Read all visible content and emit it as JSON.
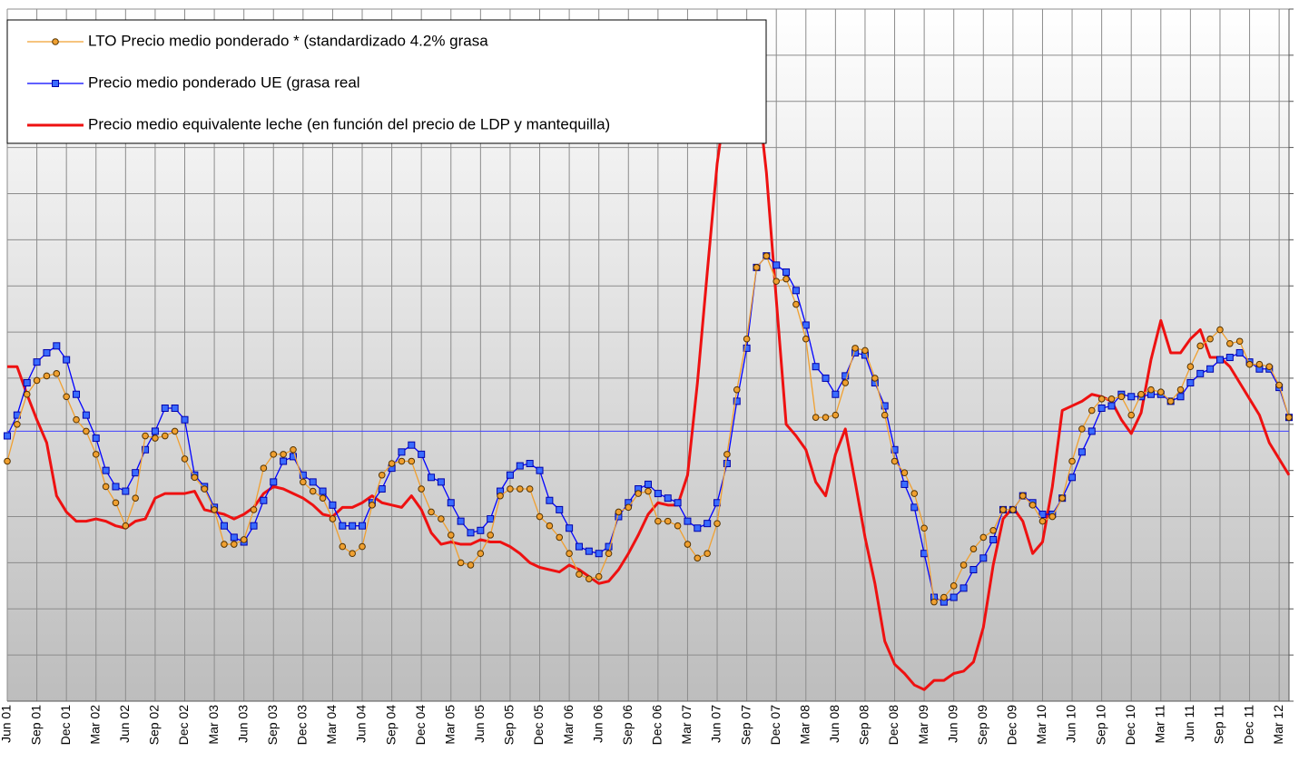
{
  "chart_data": {
    "type": "line",
    "categories": [
      "Jun 01",
      null,
      null,
      "Sep 01",
      null,
      null,
      "Dec 01",
      null,
      null,
      "Mar 02",
      null,
      null,
      "Jun 02",
      null,
      null,
      "Sep 02",
      null,
      null,
      "Dec 02",
      null,
      null,
      "Mar 03",
      null,
      null,
      "Jun 03",
      null,
      null,
      "Sep 03",
      null,
      null,
      "Dec 03",
      null,
      null,
      "Mar 04",
      null,
      null,
      "Jun 04",
      null,
      null,
      "Sep 04",
      null,
      null,
      "Dec 04",
      null,
      null,
      "Mar 05",
      null,
      null,
      "Jun 05",
      null,
      null,
      "Sep 05",
      null,
      null,
      "Dec 05",
      null,
      null,
      "Mar 06",
      null,
      null,
      "Jun 06",
      null,
      null,
      "Sep 06",
      null,
      null,
      "Dec 06",
      null,
      null,
      "Mar 07",
      null,
      null,
      "Jun 07",
      null,
      null,
      "Sep 07",
      null,
      null,
      "Dec 07",
      null,
      null,
      "Mar 08",
      null,
      null,
      "Jun 08",
      null,
      null,
      "Sep 08",
      null,
      null,
      "Dec 08",
      null,
      null,
      "Mar 09",
      null,
      null,
      "Jun 09",
      null,
      null,
      "Sep 09",
      null,
      null,
      "Dec 09",
      null,
      null,
      "Mar 10",
      null,
      null,
      "Jun 10",
      null,
      null,
      "Sep 10",
      null,
      null,
      "Dec 10",
      null,
      null,
      "Mar 11",
      null,
      null,
      "Jun 11",
      null,
      null,
      "Sep 11",
      null,
      null,
      "Dec 11",
      null,
      null,
      "Mar 12",
      null
    ],
    "series": [
      {
        "name": "LTO  Precio medio ponderado * (standardizado 4.2% grasa",
        "color": "#f0a030",
        "marker": "circle",
        "values": [
          30.4,
          32.0,
          33.3,
          33.9,
          34.1,
          34.2,
          33.2,
          32.2,
          31.7,
          30.7,
          29.3,
          28.6,
          27.6,
          28.8,
          31.5,
          31.4,
          31.5,
          31.7,
          30.5,
          29.7,
          29.2,
          28.3,
          26.8,
          26.8,
          27.0,
          28.3,
          30.1,
          30.7,
          30.7,
          30.9,
          29.5,
          29.1,
          28.8,
          27.9,
          26.7,
          26.4,
          26.7,
          28.5,
          29.8,
          30.3,
          30.4,
          30.4,
          29.2,
          28.2,
          27.9,
          27.2,
          26.0,
          25.9,
          26.4,
          27.2,
          28.9,
          29.2,
          29.2,
          29.2,
          28.0,
          27.6,
          27.1,
          26.4,
          25.5,
          25.3,
          25.4,
          26.4,
          28.2,
          28.4,
          29.0,
          29.1,
          27.8,
          27.8,
          27.6,
          26.8,
          26.2,
          26.4,
          27.7,
          30.7,
          33.5,
          35.7,
          38.8,
          39.3,
          38.2,
          38.3,
          37.2,
          35.7,
          32.3,
          32.3,
          32.4,
          33.8,
          35.3,
          35.2,
          34.0,
          32.4,
          30.4,
          29.9,
          29.0,
          27.5,
          24.3,
          24.5,
          25.0,
          25.9,
          26.6,
          27.1,
          27.4,
          28.3,
          28.3,
          28.9,
          28.5,
          27.8,
          28.0,
          28.8,
          30.4,
          31.8,
          32.6,
          33.1,
          33.1,
          33.2,
          32.4,
          33.3,
          33.5,
          33.4,
          33.0,
          33.5,
          34.5,
          35.4,
          35.7,
          36.1,
          35.5,
          35.6,
          34.6,
          34.6,
          34.5,
          33.7,
          32.3
        ]
      },
      {
        "name": "Precio medio ponderado UE  (grasa real",
        "color": "#0000ff",
        "marker": "square",
        "values": [
          31.5,
          32.4,
          33.8,
          34.7,
          35.1,
          35.4,
          34.8,
          33.3,
          32.4,
          31.4,
          30.0,
          29.3,
          29.1,
          29.9,
          30.9,
          31.7,
          32.7,
          32.7,
          32.2,
          29.8,
          29.3,
          28.4,
          27.6,
          27.1,
          26.9,
          27.6,
          28.7,
          29.5,
          30.4,
          30.6,
          29.8,
          29.5,
          29.1,
          28.5,
          27.6,
          27.6,
          27.6,
          28.6,
          29.2,
          30.1,
          30.8,
          31.1,
          30.7,
          29.7,
          29.5,
          28.6,
          27.8,
          27.3,
          27.4,
          27.9,
          29.1,
          29.8,
          30.2,
          30.3,
          30.0,
          28.7,
          28.3,
          27.5,
          26.7,
          26.5,
          26.4,
          26.7,
          28.0,
          28.6,
          29.2,
          29.4,
          29.0,
          28.8,
          28.6,
          27.8,
          27.5,
          27.7,
          28.6,
          30.3,
          33.0,
          35.3,
          38.8,
          39.3,
          38.9,
          38.6,
          37.8,
          36.3,
          34.5,
          34.0,
          33.3,
          34.1,
          35.1,
          35.0,
          33.8,
          32.8,
          30.9,
          29.4,
          28.4,
          26.4,
          24.5,
          24.3,
          24.5,
          24.9,
          25.7,
          26.2,
          27.0,
          28.3,
          28.3,
          28.9,
          28.6,
          28.1,
          28.1,
          28.8,
          29.7,
          30.8,
          31.7,
          32.7,
          32.8,
          33.3,
          33.2,
          33.2,
          33.3,
          33.3,
          33.0,
          33.2,
          33.8,
          34.2,
          34.4,
          34.8,
          34.9,
          35.1,
          34.7,
          34.4,
          34.4,
          33.6,
          32.3
        ]
      },
      {
        "name": "Precio medio equivalente leche  (en función del precio de LDP y mantequilla)",
        "color": "#ee1111",
        "marker": "none",
        "values": [
          34.5,
          34.5,
          33.3,
          32.2,
          31.2,
          28.9,
          28.2,
          27.8,
          27.8,
          27.9,
          27.8,
          27.6,
          27.5,
          27.8,
          27.9,
          28.8,
          29.0,
          29.0,
          29.0,
          29.1,
          28.3,
          28.2,
          28.1,
          27.9,
          28.1,
          28.4,
          29.0,
          29.3,
          29.2,
          29.0,
          28.8,
          28.5,
          28.1,
          28.0,
          28.4,
          28.4,
          28.6,
          28.9,
          28.6,
          28.5,
          28.4,
          28.9,
          28.3,
          27.3,
          26.8,
          26.9,
          26.8,
          26.8,
          27.0,
          26.9,
          26.9,
          26.7,
          26.4,
          26.0,
          25.8,
          25.7,
          25.6,
          25.9,
          25.7,
          25.4,
          25.1,
          25.2,
          25.7,
          26.4,
          27.2,
          28.1,
          28.6,
          28.5,
          28.5,
          29.8,
          33.8,
          38.6,
          43.3,
          46.4,
          47.9,
          48.7,
          46.8,
          42.9,
          37.4,
          32.0,
          31.5,
          30.9,
          29.5,
          28.9,
          30.7,
          31.8,
          29.5,
          27.1,
          25.1,
          22.6,
          21.6,
          21.2,
          20.7,
          20.5,
          20.9,
          20.9,
          21.2,
          21.3,
          21.7,
          23.2,
          25.9,
          27.9,
          28.4,
          27.8,
          26.4,
          26.9,
          29.3,
          32.6,
          32.8,
          33.0,
          33.3,
          33.2,
          33.0,
          32.2,
          31.6,
          32.5,
          34.8,
          36.5,
          35.1,
          35.1,
          35.7,
          36.1,
          34.9,
          34.9,
          34.5,
          33.8,
          33.1,
          32.4,
          31.2,
          30.5,
          29.8
        ]
      }
    ],
    "reference_line": {
      "value": 31.7,
      "color": "#4040ff"
    },
    "ylim": [
      20,
      50
    ],
    "yticks": [
      20,
      22,
      24,
      26,
      28,
      30,
      32,
      34,
      36,
      38,
      40,
      42,
      44,
      46,
      48,
      50
    ],
    "grid": true,
    "legend": "upper left"
  }
}
